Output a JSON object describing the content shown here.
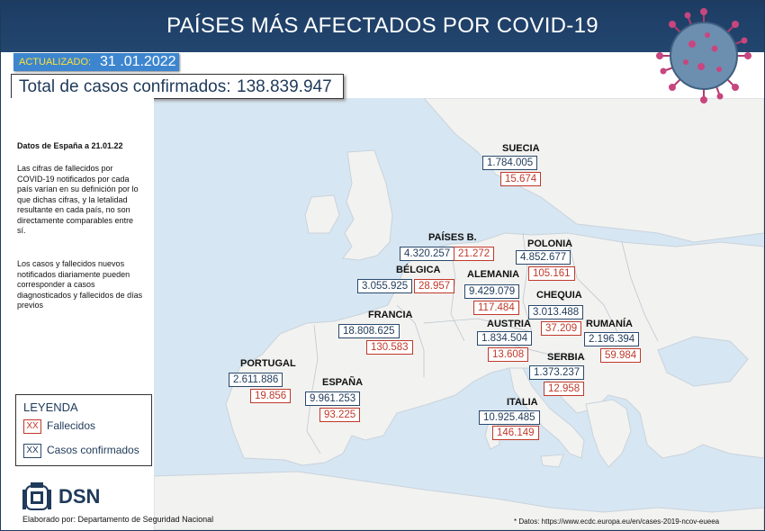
{
  "header": {
    "title": "PAÍSES MÁS AFECTADOS POR COVID-19"
  },
  "updated": {
    "label": "ACTUALIZADO:",
    "date": "31 .01.2022"
  },
  "total": {
    "label": "Total de casos confirmados:",
    "value": "138.839.947"
  },
  "notes": {
    "spain_date": "Datos de España a 21.01.22",
    "p1": "Las cifras de fallecidos por COVID-19 notificados por cada país varían en su definición por lo que dichas cifras, y la letalidad resultante en cada país, no son directamente comparables entre sí.",
    "p2": "Los casos y fallecidos nuevos notificados diariamente pueden corresponder a casos diagnosticados y fallecidos de días previos"
  },
  "countries": {
    "suecia": {
      "name": "SUECIA",
      "cases": "1.784.005",
      "deaths": "15.674"
    },
    "paises_bajos": {
      "name": "PAÍSES B.",
      "cases": "4.320.257",
      "deaths": "21.272"
    },
    "polonia": {
      "name": "POLONIA",
      "cases": "4.852.677",
      "deaths": "105.161"
    },
    "belgica": {
      "name": "BÉLGICA",
      "cases": "3.055.925",
      "deaths": "28.957"
    },
    "alemania": {
      "name": "ALEMANIA",
      "cases": "9.429.079",
      "deaths": "117.484"
    },
    "chequia": {
      "name": "CHEQUIA",
      "cases": "3.013.488",
      "deaths": "37.209"
    },
    "francia": {
      "name": "FRANCIA",
      "cases": "18.808.625",
      "deaths": "130.583"
    },
    "austria": {
      "name": "AUSTRIA",
      "cases": "1.834.504",
      "deaths": "13.608"
    },
    "rumania": {
      "name": "RUMANÍA",
      "cases": "2.196.394",
      "deaths": "59.984"
    },
    "serbia": {
      "name": "SERBIA",
      "cases": "1.373.237",
      "deaths": "12.958"
    },
    "portugal": {
      "name": "PORTUGAL",
      "cases": "2.611.886",
      "deaths": "19.856"
    },
    "espana": {
      "name": "ESPAÑA",
      "cases": "9.961.253",
      "deaths": "93.225"
    },
    "italia": {
      "name": "ITALIA",
      "cases": "10.925.485",
      "deaths": "146.149"
    }
  },
  "legend": {
    "title": "LEYENDA",
    "swatch": "XX",
    "deaths_label": "Fallecidos",
    "cases_label": "Casos confirmados"
  },
  "branding": {
    "logo_text": "DSN",
    "footer": "Elaborado por: Departamento de Seguridad Nacional"
  },
  "source": "* Datos: https://www.ecdc.europa.eu/en/cases-2019-ncov-eueea",
  "colors": {
    "header": "#1d3c63",
    "sea": "#d6e6f2",
    "land": "#f2f2f0",
    "deaths": "#c0392b",
    "cases": "#1f3a5a",
    "accent": "#3d86cf"
  }
}
